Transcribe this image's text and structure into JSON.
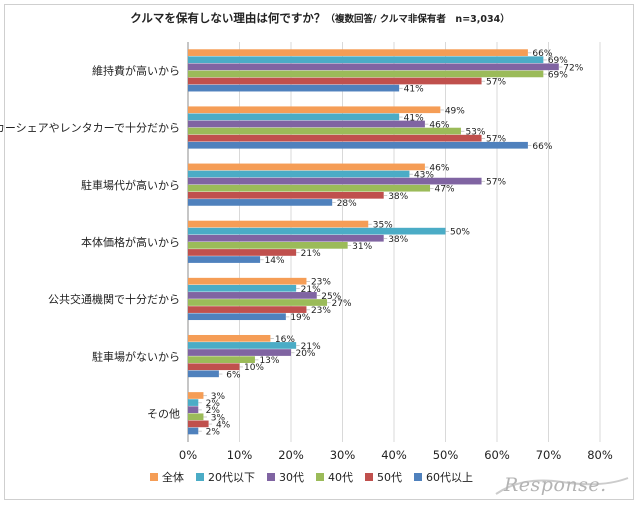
{
  "title": {
    "main": "クルマを保有しない理由は何ですか？",
    "note": "（複数回答/ クルマ非保有者　n=3,034）"
  },
  "watermark": {
    "text": "Response."
  },
  "chart_data": {
    "type": "bar",
    "orientation": "horizontal",
    "categories": [
      "維持費が高いから",
      "カーシェアやレンタカーで十分だから",
      "駐車場代が高いから",
      "本体価格が高いから",
      "公共交通機関で十分だから",
      "駐車場がないから",
      "その他"
    ],
    "series": [
      {
        "name": "全体",
        "color": "#F59D56",
        "values": [
          66,
          49,
          46,
          35,
          23,
          16,
          3
        ]
      },
      {
        "name": "20代以下",
        "color": "#4BACC6",
        "values": [
          69,
          41,
          43,
          50,
          21,
          21,
          2
        ]
      },
      {
        "name": "30代",
        "color": "#8064A2",
        "values": [
          72,
          46,
          57,
          38,
          25,
          20,
          2
        ]
      },
      {
        "name": "40代",
        "color": "#9BBB59",
        "values": [
          69,
          53,
          47,
          31,
          27,
          13,
          3
        ]
      },
      {
        "name": "50代",
        "color": "#C0504D",
        "values": [
          57,
          57,
          38,
          21,
          23,
          10,
          4
        ]
      },
      {
        "name": "60代以上",
        "color": "#4F81BD",
        "values": [
          41,
          66,
          28,
          14,
          19,
          6,
          2
        ]
      }
    ],
    "unit": "%",
    "xlim": [
      0,
      80
    ],
    "xticks": [
      0,
      10,
      20,
      30,
      40,
      50,
      60,
      70,
      80
    ],
    "xtick_labels": [
      "0%",
      "10%",
      "20%",
      "30%",
      "40%",
      "50%",
      "60%",
      "70%",
      "80%"
    ],
    "grid": true,
    "legend_position": "bottom"
  }
}
